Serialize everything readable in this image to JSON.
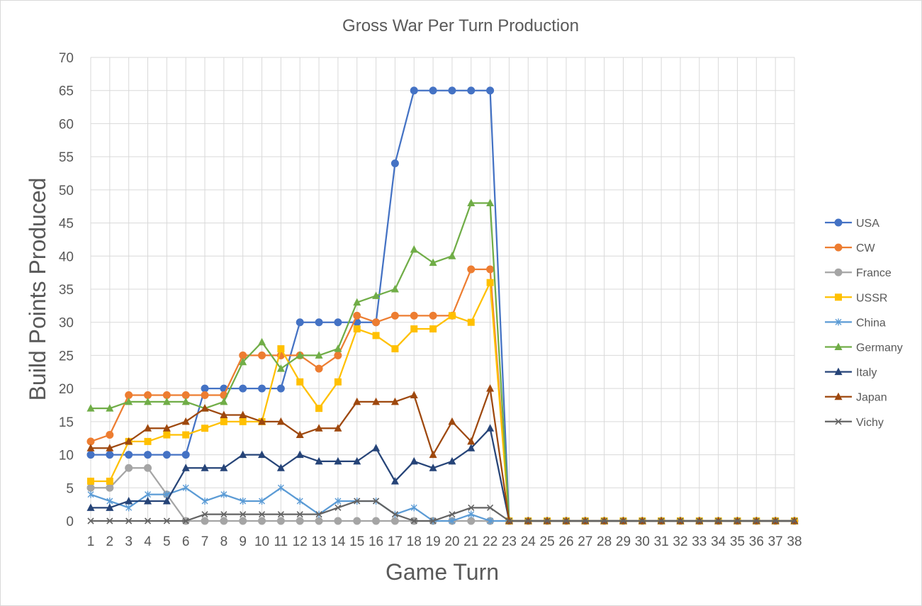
{
  "chart_data": {
    "type": "line",
    "title": "Gross War Per Turn Production",
    "xlabel": "Game Turn",
    "ylabel": "Build Points Produced",
    "ylim": [
      0,
      70
    ],
    "yticks": [
      0,
      5,
      10,
      15,
      20,
      25,
      30,
      35,
      40,
      45,
      50,
      55,
      60,
      65,
      70
    ],
    "grid": true,
    "legend_position": "right",
    "categories": [
      "1",
      "2",
      "3",
      "4",
      "5",
      "6",
      "7",
      "8",
      "9",
      "10",
      "11",
      "12",
      "13",
      "14",
      "15",
      "16",
      "17",
      "18",
      "19",
      "20",
      "21",
      "22",
      "23",
      "24",
      "25",
      "26",
      "27",
      "28",
      "29",
      "30",
      "31",
      "32",
      "33",
      "34",
      "35",
      "36",
      "37",
      "38"
    ],
    "series": [
      {
        "name": "USA",
        "color": "#4472c4",
        "marker": "circle",
        "values": [
          10,
          10,
          10,
          10,
          10,
          10,
          20,
          20,
          20,
          20,
          20,
          30,
          30,
          30,
          30,
          30,
          54,
          65,
          65,
          65,
          65,
          65,
          0,
          0,
          0,
          0,
          0,
          0,
          0,
          0,
          0,
          0,
          0,
          0,
          0,
          0,
          0,
          0
        ]
      },
      {
        "name": "CW",
        "color": "#ed7d31",
        "marker": "circle",
        "values": [
          12,
          13,
          19,
          19,
          19,
          19,
          19,
          19,
          25,
          25,
          25,
          25,
          23,
          25,
          31,
          30,
          31,
          31,
          31,
          31,
          38,
          38,
          0,
          0,
          0,
          0,
          0,
          0,
          0,
          0,
          0,
          0,
          0,
          0,
          0,
          0,
          0,
          0
        ]
      },
      {
        "name": "France",
        "color": "#a5a5a5",
        "marker": "circle",
        "values": [
          5,
          5,
          8,
          8,
          4,
          0,
          0,
          0,
          0,
          0,
          0,
          0,
          0,
          0,
          0,
          0,
          0,
          0,
          0,
          0,
          0,
          0,
          0,
          0,
          0,
          0,
          0,
          0,
          0,
          0,
          0,
          0,
          0,
          0,
          0,
          0,
          0,
          0
        ]
      },
      {
        "name": "USSR",
        "color": "#ffc000",
        "marker": "square",
        "values": [
          6,
          6,
          12,
          12,
          13,
          13,
          14,
          15,
          15,
          15,
          26,
          21,
          17,
          21,
          29,
          28,
          26,
          29,
          29,
          31,
          30,
          36,
          0,
          0,
          0,
          0,
          0,
          0,
          0,
          0,
          0,
          0,
          0,
          0,
          0,
          0,
          0,
          0
        ]
      },
      {
        "name": "China",
        "color": "#5b9bd5",
        "marker": "star",
        "values": [
          4,
          3,
          2,
          4,
          4,
          5,
          3,
          4,
          3,
          3,
          5,
          3,
          1,
          3,
          3,
          3,
          1,
          2,
          0,
          0,
          1,
          0,
          0,
          0,
          0,
          0,
          0,
          0,
          0,
          0,
          0,
          0,
          0,
          0,
          0,
          0,
          0,
          0
        ]
      },
      {
        "name": "Germany",
        "color": "#70ad47",
        "marker": "triangle",
        "values": [
          17,
          17,
          18,
          18,
          18,
          18,
          17,
          18,
          24,
          27,
          23,
          25,
          25,
          26,
          33,
          34,
          35,
          41,
          39,
          40,
          48,
          48,
          0,
          0,
          0,
          0,
          0,
          0,
          0,
          0,
          0,
          0,
          0,
          0,
          0,
          0,
          0,
          0
        ]
      },
      {
        "name": "Italy",
        "color": "#264478",
        "marker": "triangle",
        "values": [
          2,
          2,
          3,
          3,
          3,
          8,
          8,
          8,
          10,
          10,
          8,
          10,
          9,
          9,
          9,
          11,
          6,
          9,
          8,
          9,
          11,
          14,
          0,
          0,
          0,
          0,
          0,
          0,
          0,
          0,
          0,
          0,
          0,
          0,
          0,
          0,
          0,
          0
        ]
      },
      {
        "name": "Japan",
        "color": "#9e480e",
        "marker": "triangle",
        "values": [
          11,
          11,
          12,
          14,
          14,
          15,
          17,
          16,
          16,
          15,
          15,
          13,
          14,
          14,
          18,
          18,
          18,
          19,
          10,
          15,
          12,
          20,
          0,
          0,
          0,
          0,
          0,
          0,
          0,
          0,
          0,
          0,
          0,
          0,
          0,
          0,
          0,
          0
        ]
      },
      {
        "name": "Vichy",
        "color": "#636363",
        "marker": "x",
        "values": [
          0,
          0,
          0,
          0,
          0,
          0,
          1,
          1,
          1,
          1,
          1,
          1,
          1,
          2,
          3,
          3,
          1,
          0,
          0,
          1,
          2,
          2,
          0,
          0,
          0,
          0,
          0,
          0,
          0,
          0,
          0,
          0,
          0,
          0,
          0,
          0,
          0,
          0
        ]
      }
    ]
  }
}
